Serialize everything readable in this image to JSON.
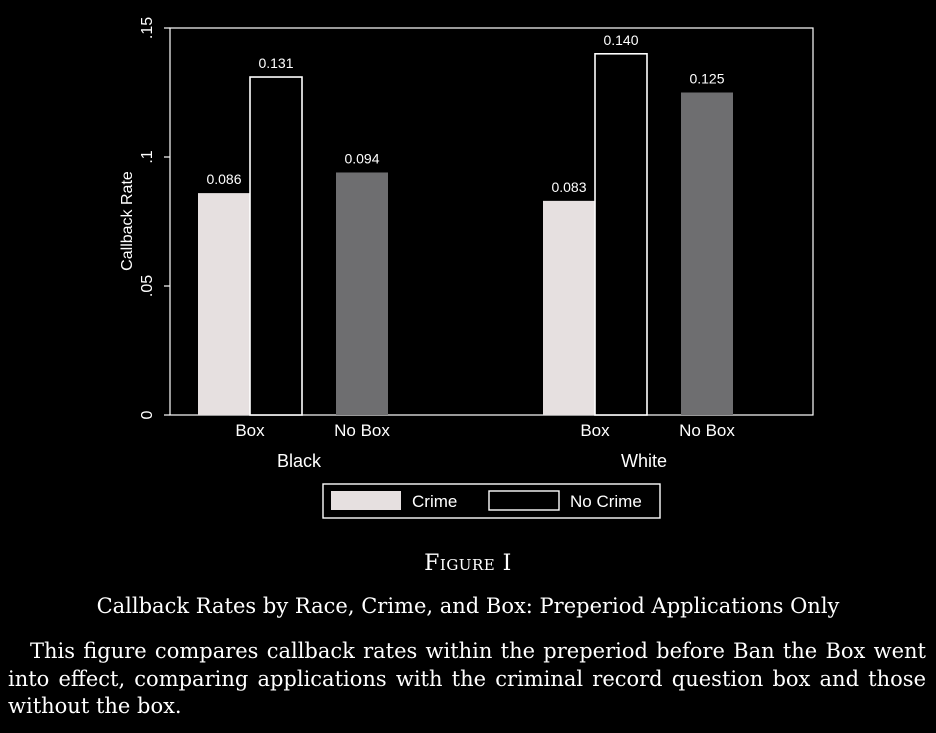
{
  "figure": {
    "label": "Figure I",
    "title": "Callback Rates by Race, Crime, and Box: Preperiod Applications Only",
    "note": "This figure compares callback rates within the preperiod before Ban the Box went into effect, comparing applications with the criminal record question box and those without the box."
  },
  "chart_data": {
    "type": "bar",
    "title": "",
    "ylabel": "Callback Rate",
    "xlabel": "",
    "ylim": [
      0,
      0.15
    ],
    "yticks": [
      {
        "value": 0,
        "label": "0"
      },
      {
        "value": 0.05,
        "label": ".05"
      },
      {
        "value": 0.1,
        "label": ".1"
      },
      {
        "value": 0.15,
        "label": ".15"
      }
    ],
    "groups": [
      {
        "label": "Black",
        "bars": [
          {
            "category": "Box",
            "series": "Crime",
            "value": 0.086,
            "label": "0.086"
          },
          {
            "category": "Box",
            "series": "No Crime",
            "value": 0.131,
            "label": "0.131"
          },
          {
            "category": "No Box",
            "series": "No Box",
            "value": 0.094,
            "label": "0.094"
          }
        ]
      },
      {
        "label": "White",
        "bars": [
          {
            "category": "Box",
            "series": "Crime",
            "value": 0.083,
            "label": "0.083"
          },
          {
            "category": "Box",
            "series": "No Crime",
            "value": 0.14,
            "label": "0.140"
          },
          {
            "category": "No Box",
            "series": "No Box",
            "value": 0.125,
            "label": "0.125"
          }
        ]
      }
    ],
    "legend": {
      "position": "bottom",
      "entries": [
        {
          "name": "Crime",
          "color": "#e6e0e0",
          "outline": false
        },
        {
          "name": "No Crime",
          "color": "#000000",
          "outline": true
        }
      ]
    },
    "colors": {
      "Crime": "#e6e0e0",
      "No Crime": "#000000",
      "No Box": "#6e6e70",
      "axis": "#ffffff",
      "background": "#000000"
    },
    "grid": false
  }
}
